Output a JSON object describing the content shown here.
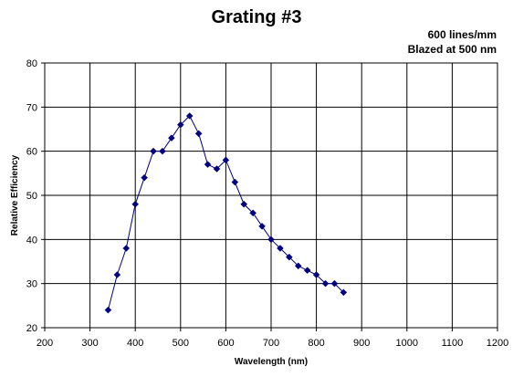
{
  "chart_data": {
    "type": "line",
    "title": "Grating #3",
    "annotations": [
      "600 lines/mm",
      "Blazed at 500 nm"
    ],
    "xlabel": "Wavelength (nm)",
    "ylabel": "Relative Efficiency",
    "xlim": [
      200,
      1200
    ],
    "ylim": [
      20,
      80
    ],
    "x_ticks": [
      "200",
      "300",
      "400",
      "500",
      "600",
      "700",
      "800",
      "900",
      "1000",
      "1100",
      "1200"
    ],
    "y_ticks": [
      "20",
      "30",
      "40",
      "50",
      "60",
      "70",
      "80"
    ],
    "grid": true,
    "legend": "none",
    "series": [
      {
        "x": [
          340,
          360,
          380,
          400,
          420,
          440,
          460,
          480,
          500,
          520,
          540,
          560,
          580,
          600,
          620,
          640,
          660,
          680,
          700,
          720,
          740,
          760,
          780,
          800,
          820,
          840,
          860
        ],
        "y": [
          24,
          32,
          38,
          48,
          54,
          60,
          60,
          63,
          66,
          68,
          64,
          57,
          56,
          58,
          53,
          48,
          46,
          43,
          40,
          38,
          36,
          34,
          33,
          32,
          30,
          30,
          28
        ],
        "color": "#000080",
        "marker": "diamond"
      }
    ]
  }
}
